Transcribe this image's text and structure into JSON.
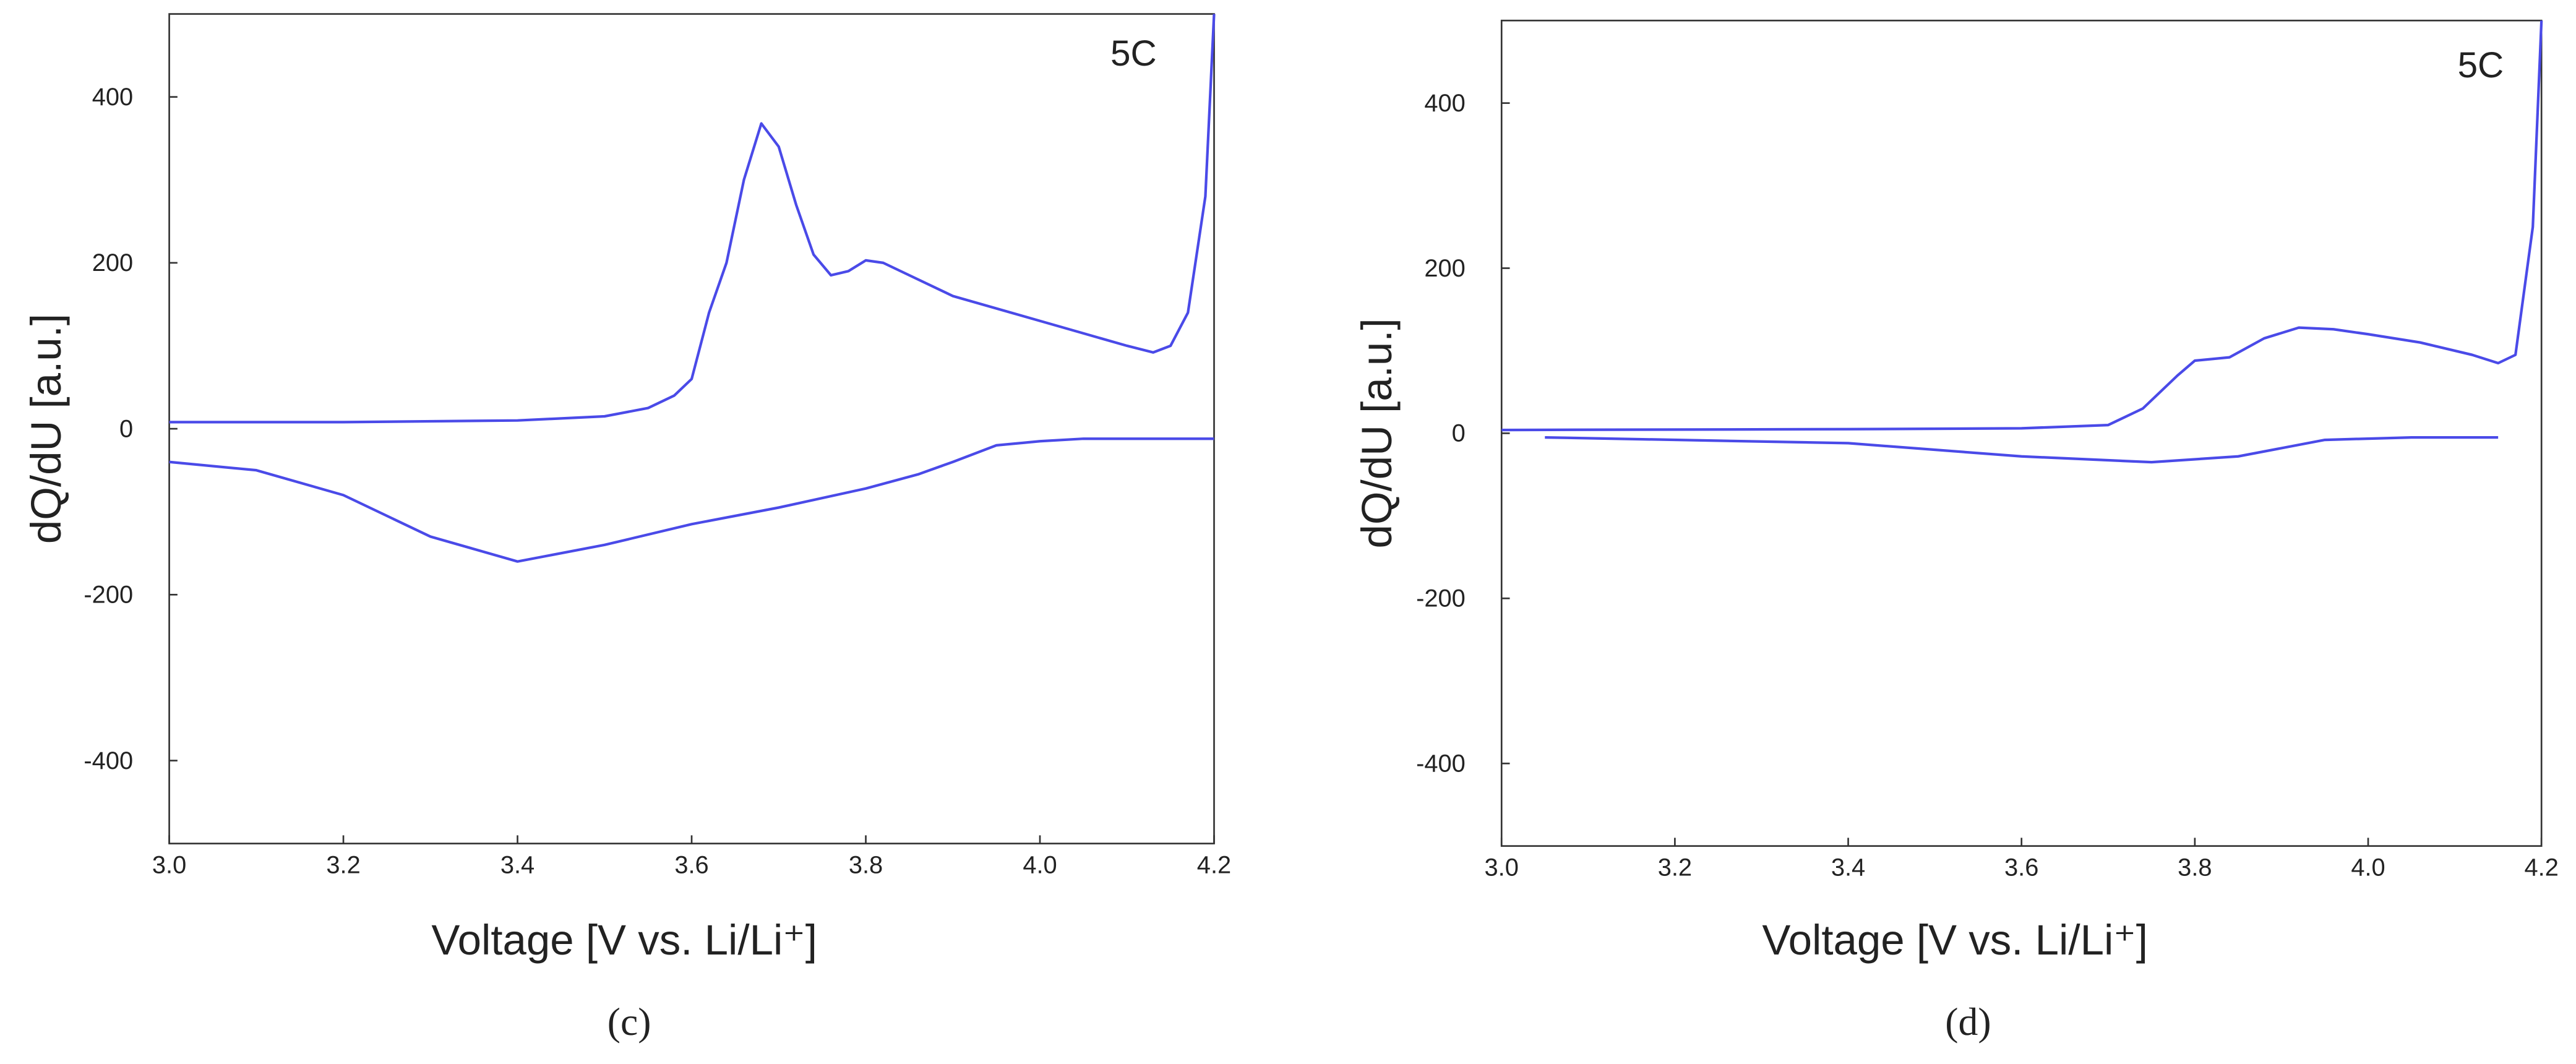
{
  "chart_data": [
    {
      "type": "line",
      "annotation": "5C",
      "panel_label": "(c)",
      "x_label": "Voltage [V vs. Li/Li⁺]",
      "y_label": "dQ/dU [a.u.]",
      "xlim": [
        3.0,
        4.2
      ],
      "ylim": [
        -500,
        500
      ],
      "xticks": [
        {
          "value": 3.0,
          "label": "3.0"
        },
        3.2,
        3.4,
        3.6,
        3.8,
        {
          "value": 4.0,
          "label": "4.0"
        },
        4.2
      ],
      "yticks": [
        -400,
        -200,
        0,
        200,
        400
      ],
      "series": [
        {
          "color": "#4a4ae8",
          "x": [
            3.0,
            3.2,
            3.4,
            3.5,
            3.55,
            3.58,
            3.6,
            3.62,
            3.64,
            3.66,
            3.68,
            3.7,
            3.72,
            3.74,
            3.76,
            3.78,
            3.8,
            3.82,
            3.85,
            3.9,
            4.0,
            4.05,
            4.1,
            4.13,
            4.15,
            4.17,
            4.19,
            4.2
          ],
          "values": [
            8,
            8,
            10,
            15,
            25,
            40,
            60,
            140,
            200,
            300,
            368,
            340,
            270,
            210,
            185,
            190,
            203,
            200,
            185,
            160,
            130,
            115,
            100,
            92,
            100,
            140,
            280,
            500
          ]
        },
        {
          "color": "#4a4ae8",
          "x": [
            3.0,
            3.1,
            3.2,
            3.3,
            3.4,
            3.5,
            3.6,
            3.7,
            3.8,
            3.86,
            3.9,
            3.95,
            4.0,
            4.05,
            4.2
          ],
          "values": [
            -40,
            -50,
            -80,
            -130,
            -160,
            -140,
            -115,
            -95,
            -72,
            -55,
            -40,
            -20,
            -15,
            -12,
            -12
          ]
        }
      ]
    },
    {
      "type": "line",
      "annotation": "5C",
      "panel_label": "(d)",
      "x_label": "Voltage [V vs. Li/Li⁺]",
      "y_label": "dQ/dU [a.u.]",
      "xlim": [
        3.0,
        4.2
      ],
      "ylim": [
        -500,
        500
      ],
      "xticks": [
        {
          "value": 3.0,
          "label": "3.0"
        },
        3.2,
        3.4,
        3.6,
        3.8,
        {
          "value": 4.0,
          "label": "4.0"
        },
        4.2
      ],
      "yticks": [
        -400,
        -200,
        0,
        200,
        400
      ],
      "series": [
        {
          "color": "#4a4ae8",
          "x": [
            3.0,
            3.4,
            3.6,
            3.7,
            3.74,
            3.78,
            3.8,
            3.84,
            3.88,
            3.92,
            3.96,
            4.0,
            4.06,
            4.12,
            4.15,
            4.17,
            4.19,
            4.2
          ],
          "values": [
            4,
            5,
            6,
            10,
            30,
            70,
            88,
            92,
            115,
            128,
            126,
            120,
            110,
            95,
            85,
            95,
            250,
            500
          ]
        },
        {
          "color": "#4a4ae8",
          "x": [
            3.05,
            3.4,
            3.6,
            3.75,
            3.85,
            3.95,
            4.05,
            4.15
          ],
          "values": [
            -5,
            -12,
            -28,
            -35,
            -28,
            -8,
            -5,
            -5
          ]
        }
      ]
    }
  ]
}
